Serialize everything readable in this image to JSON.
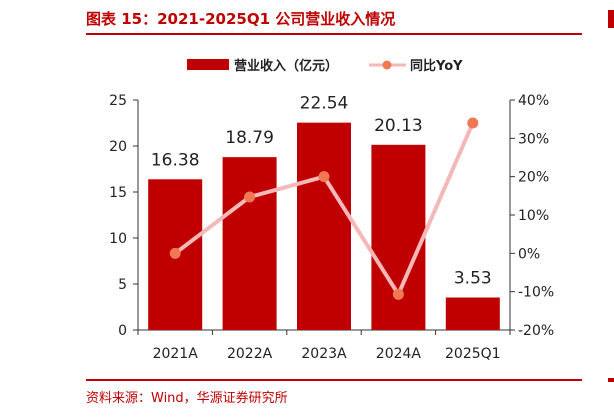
{
  "header": {
    "title": "图表 15：2021-2025Q1 公司营业收入情况"
  },
  "footer": {
    "source": "资料来源：Wind，华源证券研究所"
  },
  "colors": {
    "bar": "#c00000",
    "line": "#f4b8b8",
    "marker": "#f07855",
    "accent": "#c00000",
    "text": "#222222"
  },
  "chart_data": {
    "type": "bar",
    "title": "",
    "categories": [
      "2021A",
      "2022A",
      "2023A",
      "2024A",
      "2025Q1"
    ],
    "series": [
      {
        "name": "营业收入（亿元）",
        "type": "bar",
        "axis": "left",
        "values": [
          16.38,
          18.79,
          22.54,
          20.13,
          3.53
        ]
      },
      {
        "name": "同比YoY",
        "type": "line",
        "axis": "right",
        "values": [
          0.0,
          14.7,
          20.0,
          -10.7,
          34.0
        ]
      }
    ],
    "data_labels": [
      "16.38",
      "18.79",
      "22.54",
      "20.13",
      "3.53"
    ],
    "y_left": {
      "min": 0,
      "max": 25,
      "ticks": [
        "0",
        "5",
        "10",
        "15",
        "20",
        "25"
      ]
    },
    "y_right": {
      "min": -20,
      "max": 40,
      "ticks": [
        "-20%",
        "-10%",
        "0%",
        "10%",
        "20%",
        "30%",
        "40%"
      ]
    },
    "legend": {
      "position": "top-center"
    },
    "grid": false
  }
}
